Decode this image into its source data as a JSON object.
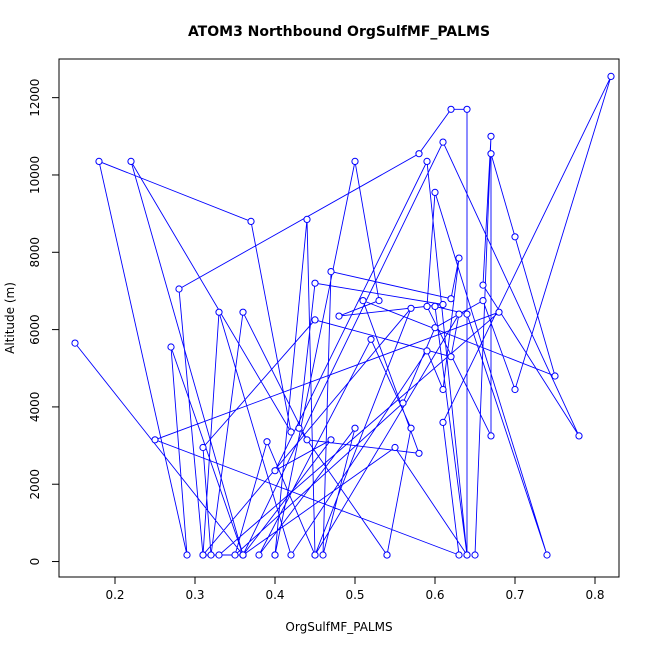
{
  "chart_data": {
    "type": "line",
    "title": "ATOM3 Northbound OrgSulfMF_PALMS",
    "xlabel": "OrgSulfMF_PALMS",
    "ylabel": "Altitude (m)",
    "xlim": [
      0.13,
      0.83
    ],
    "ylim": [
      -400,
      13000
    ],
    "x_ticks": [
      0.2,
      0.3,
      0.4,
      0.5,
      0.6,
      0.7,
      0.8
    ],
    "x_tick_labels": [
      "0.2",
      "0.3",
      "0.4",
      "0.5",
      "0.6",
      "0.7",
      "0.8"
    ],
    "y_ticks": [
      0,
      2000,
      4000,
      6000,
      8000,
      10000,
      12000
    ],
    "y_tick_labels": [
      "0",
      "2000",
      "4000",
      "6000",
      "8000",
      "10000",
      "12000"
    ],
    "grid": false,
    "legend": "none",
    "line_style": "lines with open circle markers",
    "color": "#0000ff",
    "series": [
      {
        "x": [
          0.15,
          0.36,
          0.27,
          0.29,
          0.18,
          0.37,
          0.42,
          0.22,
          0.36,
          0.31,
          0.28,
          0.58,
          0.62,
          0.64,
          0.64,
          0.6,
          0.64,
          0.74,
          0.6,
          0.59,
          0.67,
          0.67,
          0.7,
          0.75,
          0.51,
          0.58,
          0.44,
          0.36,
          0.32,
          0.31,
          0.45,
          0.62,
          0.63,
          0.45,
          0.44,
          0.4,
          0.4,
          0.5,
          0.53,
          0.48,
          0.61,
          0.45,
          0.43,
          0.54,
          0.54,
          0.57,
          0.52,
          0.38,
          0.5,
          0.46,
          0.47,
          0.62,
          0.63,
          0.61,
          0.59,
          0.42,
          0.33,
          0.31,
          0.57,
          0.45,
          0.39,
          0.35,
          0.56,
          0.6,
          0.66,
          0.7,
          0.82,
          0.61,
          0.63,
          0.25,
          0.68,
          0.33,
          0.36,
          0.55,
          0.64,
          0.59,
          0.4,
          0.47,
          0.36,
          0.61,
          0.78,
          0.66,
          0.67,
          0.65
        ],
        "y": [
          5650,
          170,
          5550,
          170,
          10350,
          8800,
          3350,
          10350,
          170,
          170,
          7050,
          10550,
          11700,
          11700,
          170,
          6600,
          6400,
          170,
          9550,
          6600,
          3250,
          10550,
          8400,
          4800,
          6750,
          2800,
          3150,
          6450,
          170,
          2950,
          6250,
          5300,
          6400,
          170,
          8850,
          170,
          170,
          10350,
          6750,
          6350,
          6650,
          7200,
          3450,
          170,
          170,
          3450,
          5750,
          170,
          3450,
          170,
          7500,
          6800,
          7850,
          4450,
          5450,
          170,
          6450,
          170,
          6550,
          170,
          3100,
          170,
          4100,
          6050,
          6750,
          4450,
          12550,
          3600,
          170,
          3150,
          6450,
          170,
          170,
          2950,
          170,
          10350,
          2350,
          3150,
          170,
          10850,
          3250,
          7150,
          11000,
          170
        ]
      }
    ]
  }
}
